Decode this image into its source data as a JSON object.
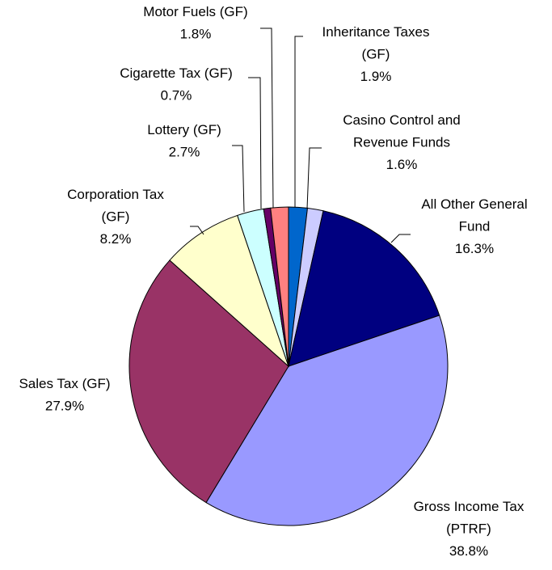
{
  "chart_data": {
    "type": "pie",
    "categories": [
      "Inheritance Taxes (GF)",
      "Casino Control and Revenue Funds",
      "All Other General Fund",
      "Gross Income Tax (PTRF)",
      "Sales Tax (GF)",
      "Corporation Tax (GF)",
      "Lottery (GF)",
      "Cigarette Tax (GF)",
      "Motor Fuels (GF)"
    ],
    "values": [
      1.9,
      1.6,
      16.3,
      38.8,
      27.9,
      8.2,
      2.7,
      0.7,
      1.8
    ],
    "value_labels": [
      "1.9%",
      "1.6%",
      "16.3%",
      "38.8%",
      "27.9%",
      "8.2%",
      "2.7%",
      "0.7%",
      "1.8%"
    ],
    "colors": [
      "#0066cc",
      "#ccccff",
      "#000080",
      "#9999ff",
      "#993366",
      "#ffffcc",
      "#ccffff",
      "#660066",
      "#ff8080"
    ]
  }
}
